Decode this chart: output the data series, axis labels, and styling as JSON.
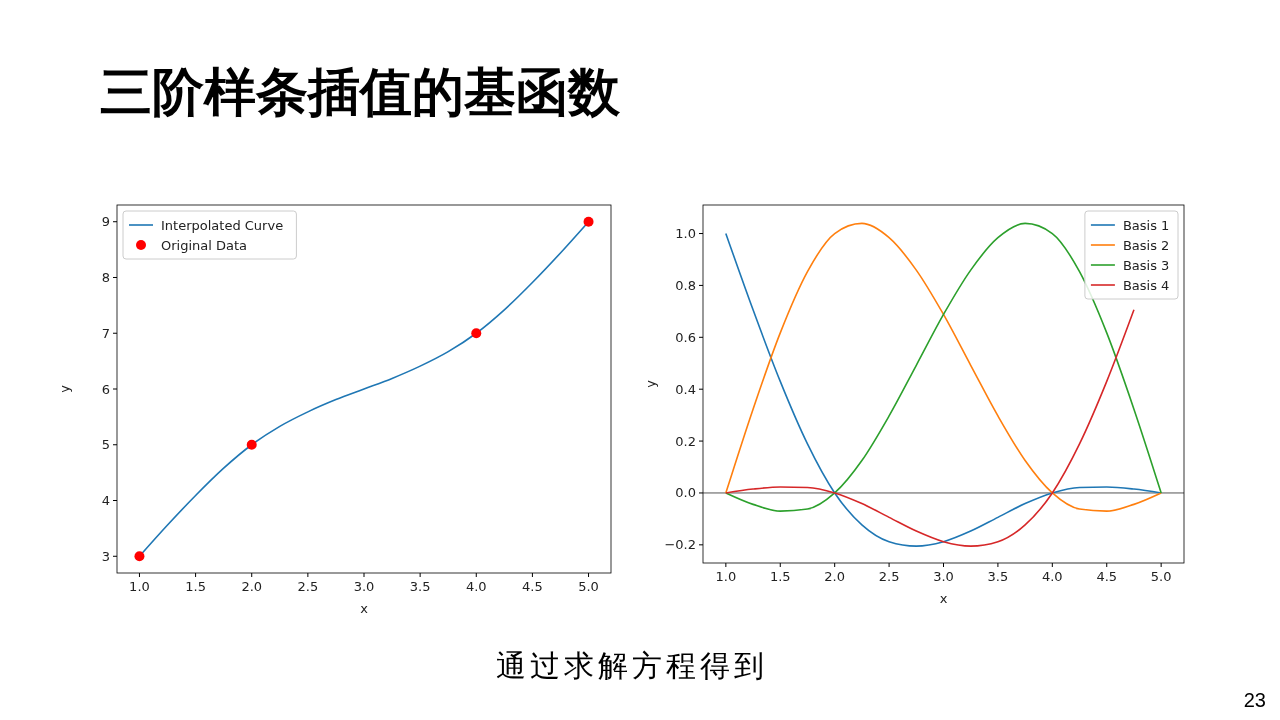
{
  "chart_data": [
    {
      "type": "line",
      "title": "三阶样条插值的基函数",
      "xlabel": "x",
      "ylabel": "y",
      "xlim": [
        0.8,
        5.2
      ],
      "ylim": [
        2.7,
        9.3
      ],
      "xticks": [
        {
          "value": 1,
          "label": "1.0"
        },
        {
          "value": 1.5,
          "label": "1.5"
        },
        {
          "value": 2,
          "label": "2.0"
        },
        {
          "value": 2.5,
          "label": "2.5"
        },
        {
          "value": 3,
          "label": "3.0"
        },
        {
          "value": 3.5,
          "label": "3.5"
        },
        {
          "value": 4,
          "label": "4.0"
        },
        {
          "value": 4.5,
          "label": "4.5"
        },
        {
          "value": 5,
          "label": "5.0"
        }
      ],
      "yticks": [
        3,
        4,
        5,
        6,
        7,
        8,
        9
      ],
      "grid": false,
      "legend": "top left",
      "series": [
        {
          "name": "Interpolated Curve",
          "color": "#1f77b4",
          "x": [
            1,
            1.25,
            1.5,
            1.75,
            2,
            2.25,
            2.5,
            2.75,
            3,
            3.25,
            3.5,
            3.75,
            4,
            4.25,
            4.5,
            4.75,
            5
          ],
          "values": [
            3,
            3.56,
            4.09,
            4.58,
            5,
            5.33,
            5.59,
            5.81,
            6,
            6.19,
            6.41,
            6.67,
            7,
            7.42,
            7.91,
            8.44,
            9
          ]
        },
        {
          "name": "Original Data",
          "type": "scatter",
          "marker": "circle",
          "color": "#ff0000",
          "x": [
            1,
            2,
            4,
            5
          ],
          "values": [
            3,
            5,
            7,
            9
          ]
        }
      ]
    },
    {
      "type": "line",
      "xlabel": "x",
      "ylabel": "y",
      "xlim": [
        0.79,
        5.21
      ],
      "ylim": [
        -0.27,
        1.11
      ],
      "xticks": [
        {
          "value": 1,
          "label": "1.0"
        },
        {
          "value": 1.5,
          "label": "1.5"
        },
        {
          "value": 2,
          "label": "2.0"
        },
        {
          "value": 2.5,
          "label": "2.5"
        },
        {
          "value": 3,
          "label": "3.0"
        },
        {
          "value": 3.5,
          "label": "3.5"
        },
        {
          "value": 4,
          "label": "4.0"
        },
        {
          "value": 4.5,
          "label": "4.5"
        },
        {
          "value": 5,
          "label": "5.0"
        }
      ],
      "yticks": [
        {
          "value": -0.2,
          "label": "−0.2"
        },
        {
          "value": 0,
          "label": "0.0"
        },
        {
          "value": 0.2,
          "label": "0.2"
        },
        {
          "value": 0.4,
          "label": "0.4"
        },
        {
          "value": 0.6,
          "label": "0.6"
        },
        {
          "value": 0.8,
          "label": "0.8"
        },
        {
          "value": 1,
          "label": "1.0"
        }
      ],
      "grid": false,
      "legend": "top right",
      "ref_lines": [
        {
          "axis": "y",
          "value": 0,
          "color": "#555555"
        }
      ],
      "annotations": [
        "通过求解方程得到",
        "23"
      ],
      "series": [
        {
          "name": "Basis 1",
          "color": "#1f77b4",
          "x": [
            1,
            1.25,
            1.5,
            1.75,
            2,
            2.25,
            2.5,
            2.75,
            3,
            3.25,
            3.5,
            3.75,
            4,
            4.25,
            4.5,
            4.75,
            5
          ],
          "values": [
            1,
            0.706,
            0.43,
            0.189,
            0,
            -0.123,
            -0.188,
            -0.205,
            -0.188,
            -0.147,
            -0.094,
            -0.041,
            0,
            0.021,
            0.023,
            0.015,
            0
          ]
        },
        {
          "name": "Basis 2",
          "color": "#ff7f0e",
          "x": [
            1,
            1.25,
            1.5,
            1.75,
            2,
            2.25,
            2.5,
            2.75,
            3,
            3.25,
            3.5,
            3.75,
            4,
            4.25,
            4.5,
            4.75,
            5
          ],
          "values": [
            0,
            0.323,
            0.617,
            0.853,
            1,
            1.039,
            0.984,
            0.859,
            0.688,
            0.492,
            0.297,
            0.125,
            0,
            -0.062,
            -0.07,
            -0.044,
            0
          ]
        },
        {
          "name": "Basis 3",
          "color": "#2ca02c",
          "x": [
            1,
            1.25,
            1.5,
            1.75,
            2,
            2.25,
            2.5,
            2.75,
            3,
            3.25,
            3.5,
            3.75,
            4,
            4.25,
            4.5,
            4.75,
            5
          ],
          "values": [
            0,
            -0.044,
            -0.07,
            -0.062,
            0,
            0.125,
            0.297,
            0.492,
            0.688,
            0.859,
            0.984,
            1.039,
            1,
            0.853,
            0.617,
            0.323,
            0
          ]
        },
        {
          "name": "Basis 4",
          "color": "#d62728",
          "x": [
            1,
            1.25,
            1.5,
            1.75,
            2,
            2.25,
            2.5,
            2.75,
            3,
            3.25,
            3.5,
            3.75,
            4,
            4.25,
            4.5,
            4.75
          ],
          "values": [
            0,
            0.015,
            0.023,
            0.021,
            0,
            -0.041,
            -0.094,
            -0.147,
            -0.188,
            -0.205,
            -0.188,
            -0.123,
            0,
            0.189,
            0.43,
            0.706
          ]
        }
      ]
    }
  ]
}
